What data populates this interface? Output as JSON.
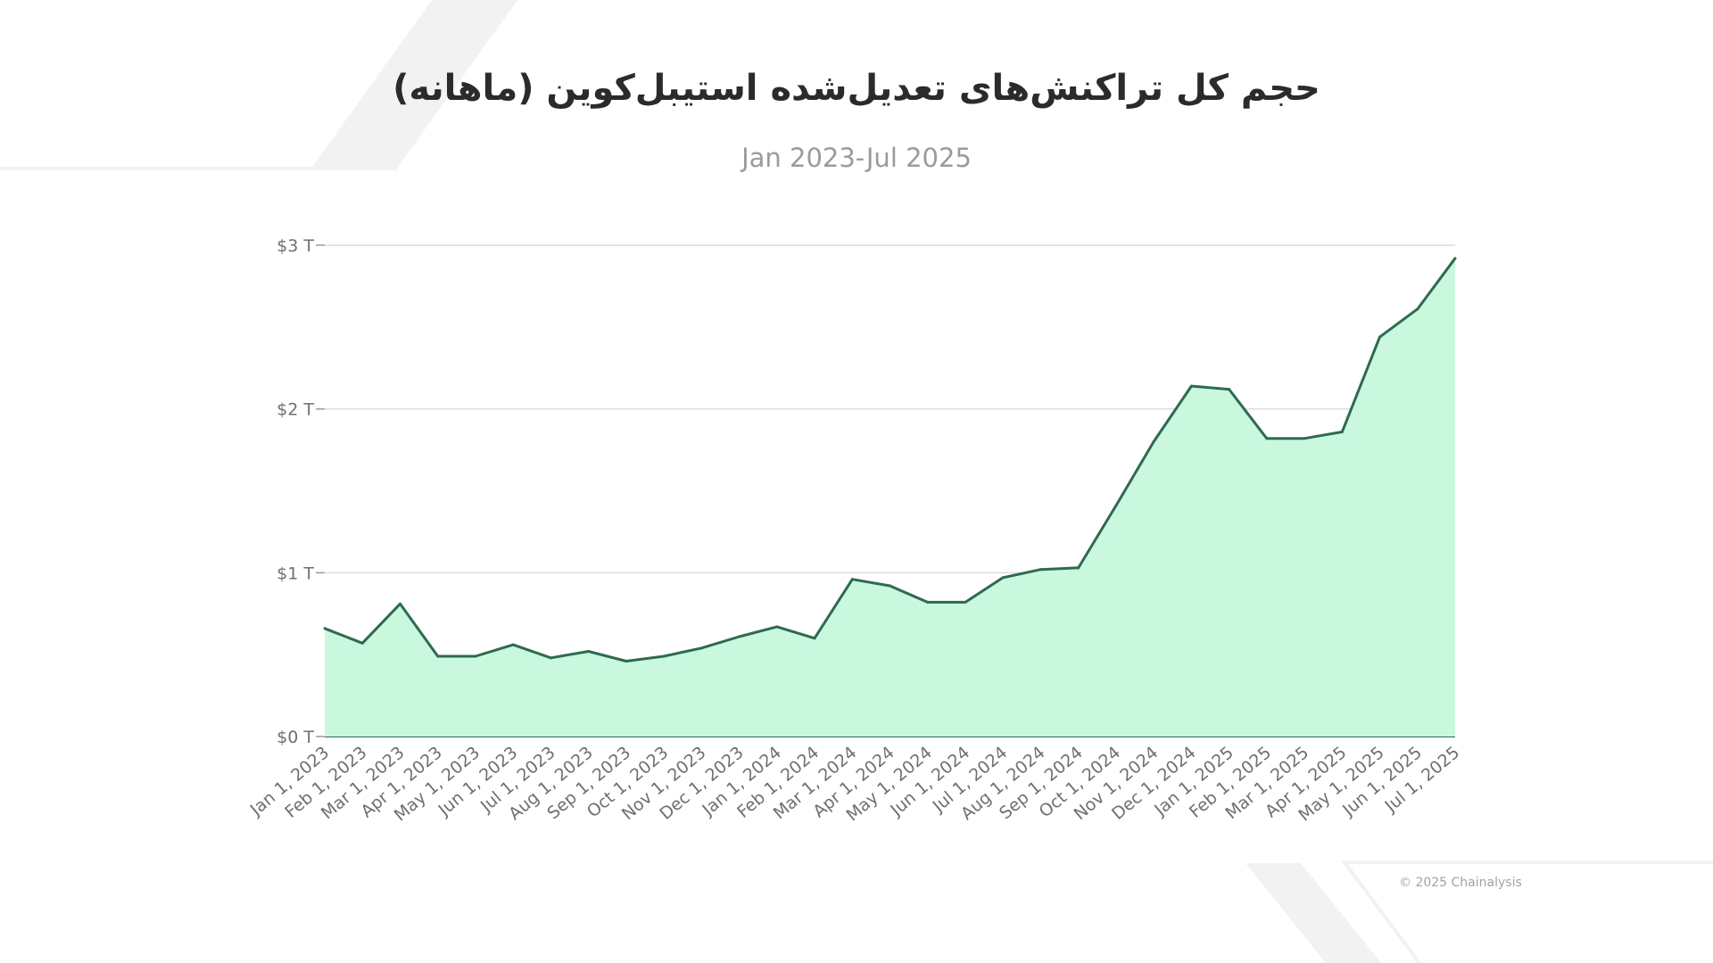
{
  "chart_data": {
    "type": "area",
    "title": "حجم کل تراکنش‌های تعدیل‌شده استیبل‌کوین (ماهانه)",
    "subtitle": "Jan 2023-Jul 2025",
    "xlabel": "",
    "ylabel": "",
    "ylim": [
      0,
      3
    ],
    "y_unit": "T",
    "y_tick_values": [
      0,
      1,
      2,
      3
    ],
    "y_tick_labels": [
      "$0 T",
      "$1 T",
      "$2 T",
      "$3 T"
    ],
    "grid": true,
    "legend": "none",
    "colors": {
      "line": "#2e6a4f",
      "fill": "#c9f8df",
      "grid": "#dcdcdc"
    },
    "categories": [
      "Jan 1, 2023",
      "Feb 1, 2023",
      "Mar 1, 2023",
      "Apr 1, 2023",
      "May 1, 2023",
      "Jun 1, 2023",
      "Jul 1, 2023",
      "Aug 1, 2023",
      "Sep 1, 2023",
      "Oct 1, 2023",
      "Nov 1, 2023",
      "Dec 1, 2023",
      "Jan 1, 2024",
      "Feb 1, 2024",
      "Mar 1, 2024",
      "Apr 1, 2024",
      "May 1, 2024",
      "Jun 1, 2024",
      "Jul 1, 2024",
      "Aug 1, 2024",
      "Sep 1, 2024",
      "Oct 1, 2024",
      "Nov 1, 2024",
      "Dec 1, 2024",
      "Jan 1, 2025",
      "Feb 1, 2025",
      "Mar 1, 2025",
      "Apr 1, 2025",
      "May 1, 2025",
      "Jun 1, 2025",
      "Jul 1, 2025"
    ],
    "series": [
      {
        "values": [
          0.66,
          0.57,
          0.81,
          0.49,
          0.49,
          0.56,
          0.48,
          0.52,
          0.46,
          0.49,
          0.54,
          0.61,
          0.67,
          0.6,
          0.96,
          0.92,
          0.82,
          0.82,
          0.97,
          1.02,
          1.03,
          1.41,
          1.8,
          2.14,
          2.12,
          1.82,
          1.82,
          1.86,
          2.44,
          2.61,
          2.92
        ]
      }
    ]
  },
  "footer": {
    "copyright": "© 2025 Chainalysis"
  }
}
